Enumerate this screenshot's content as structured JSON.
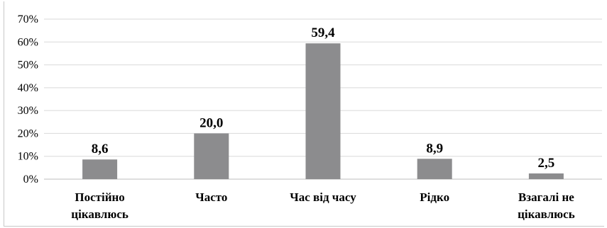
{
  "chart_data": {
    "type": "bar",
    "categories": [
      [
        "Постійно",
        "цікавлюсь"
      ],
      [
        "Часто"
      ],
      [
        "Час від часу"
      ],
      [
        "Рідко"
      ],
      [
        "Взагалі не",
        "цікавлюсь"
      ]
    ],
    "values": [
      8.6,
      20.0,
      59.4,
      8.9,
      2.5
    ],
    "data_labels": [
      "8,6",
      "20,0",
      "59,4",
      "8,9",
      "2,5"
    ],
    "yticks": [
      "0%",
      "10%",
      "20%",
      "30%",
      "40%",
      "50%",
      "60%",
      "70%"
    ],
    "ylim": [
      0,
      70
    ],
    "bar_color": "#8c8c8e",
    "grid": true,
    "legend": "none"
  }
}
